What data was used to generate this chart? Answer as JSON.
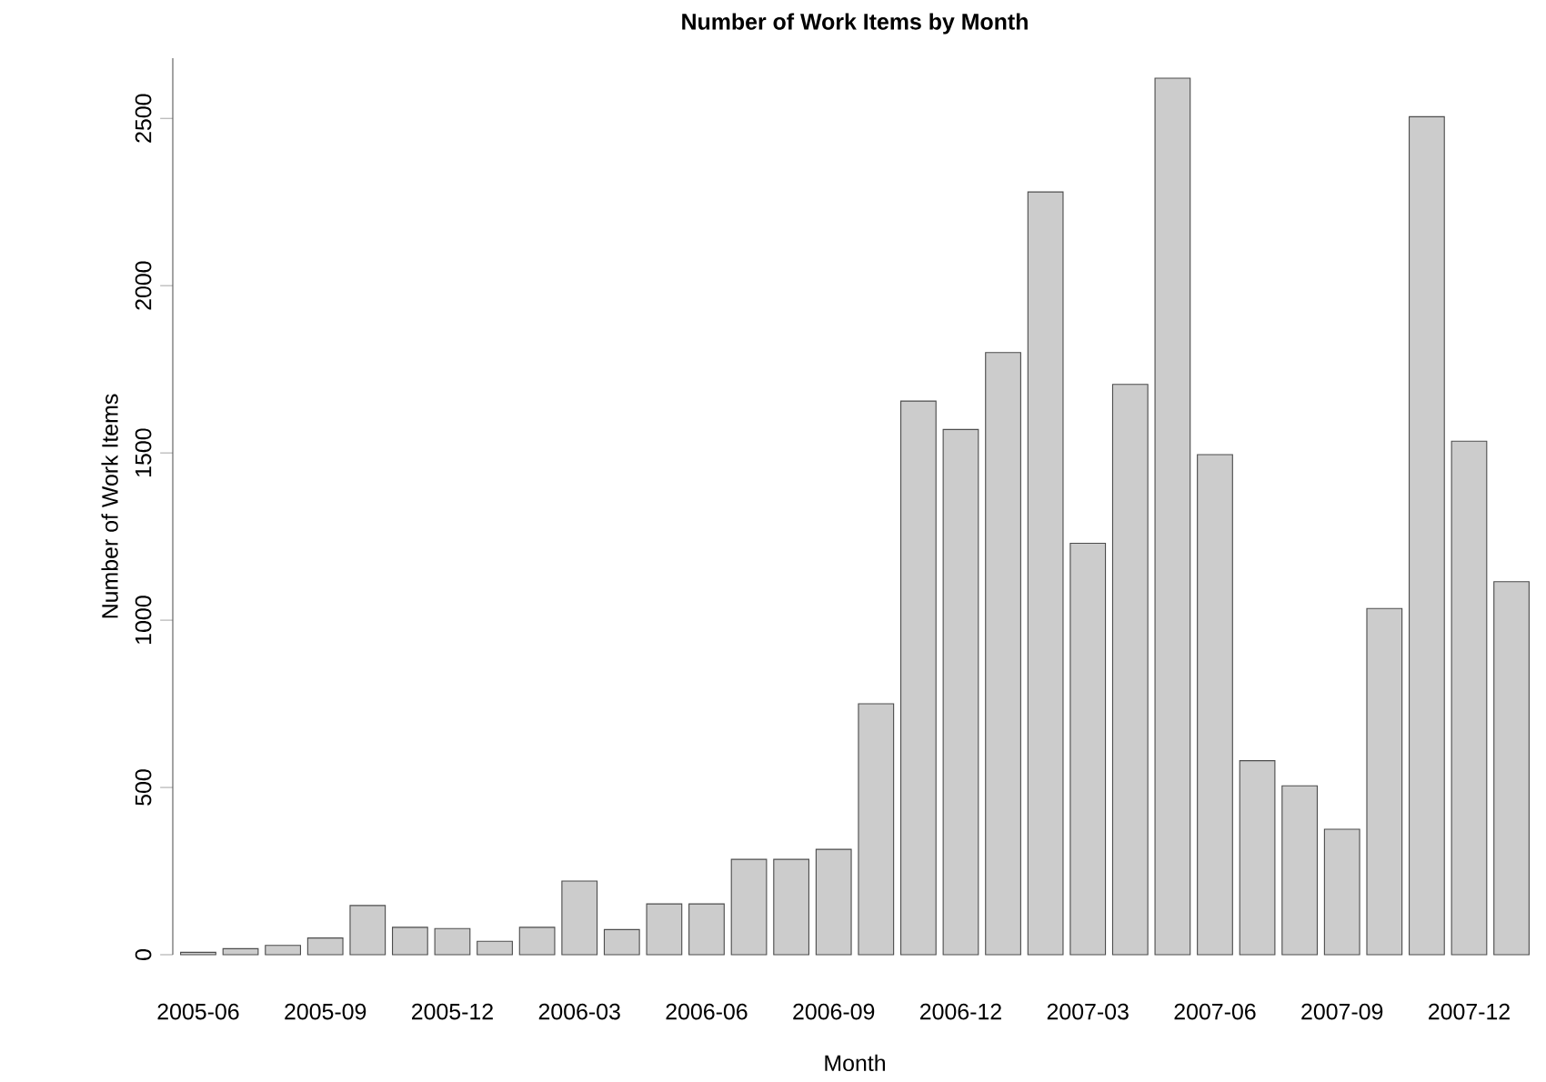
{
  "chart_data": {
    "type": "bar",
    "title": "Number of Work Items by Month",
    "xlabel": "Month",
    "ylabel": "Number of Work Items",
    "categories": [
      "2005-06",
      null,
      null,
      "2005-09",
      null,
      null,
      "2005-12",
      null,
      null,
      "2006-03",
      null,
      null,
      "2006-06",
      null,
      null,
      "2006-09",
      null,
      null,
      "2006-12",
      null,
      null,
      "2007-03",
      null,
      null,
      "2007-06",
      null,
      null,
      "2007-09",
      null,
      null,
      "2007-12",
      null
    ],
    "values": [
      7,
      18,
      28,
      50,
      147,
      82,
      78,
      40,
      82,
      220,
      75,
      152,
      152,
      285,
      285,
      315,
      750,
      1655,
      1570,
      1800,
      2280,
      1230,
      1705,
      2620,
      1495,
      580,
      505,
      375,
      1035,
      2505,
      1535,
      1115
    ],
    "color": "#cccccc",
    "ylim": [
      0,
      2680
    ],
    "yticks": [
      0,
      500,
      1000,
      1500,
      2000,
      2500
    ],
    "grid": false
  }
}
